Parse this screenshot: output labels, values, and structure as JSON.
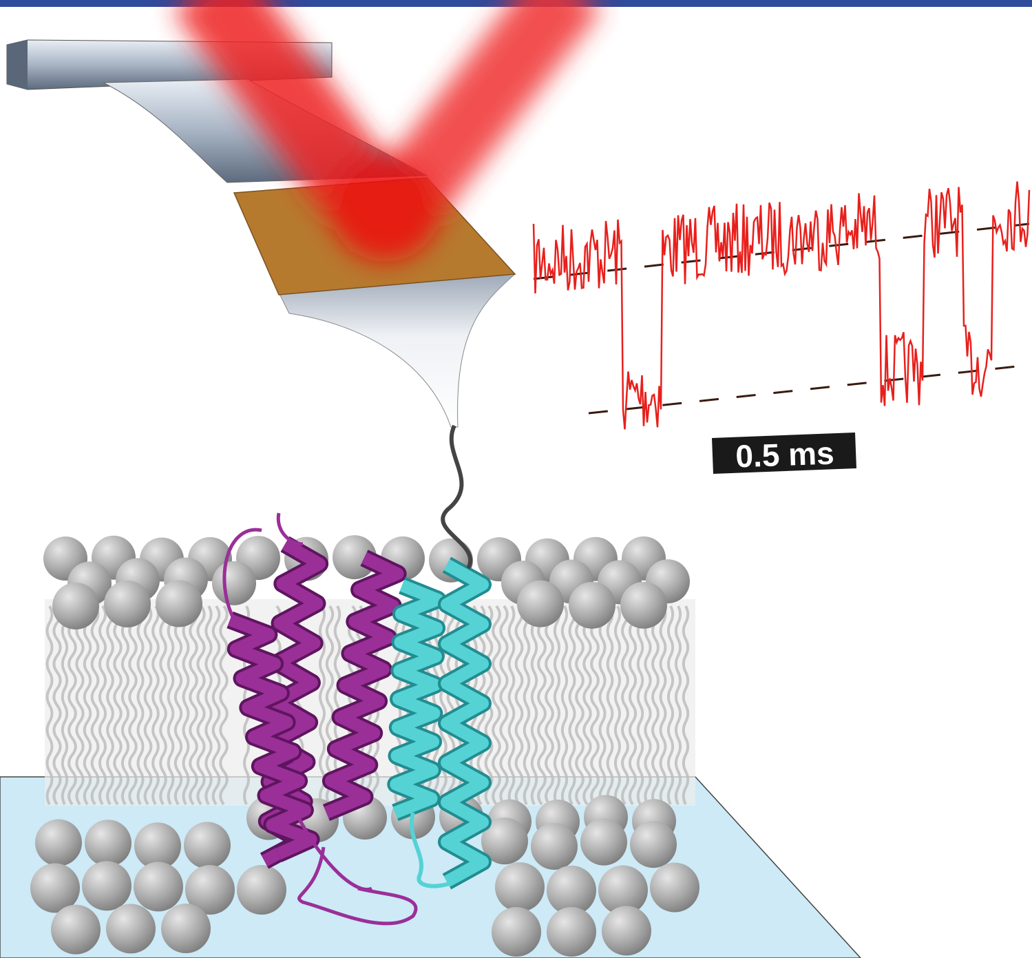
{
  "scale_bar": {
    "label": "0.5 ms"
  }
}
